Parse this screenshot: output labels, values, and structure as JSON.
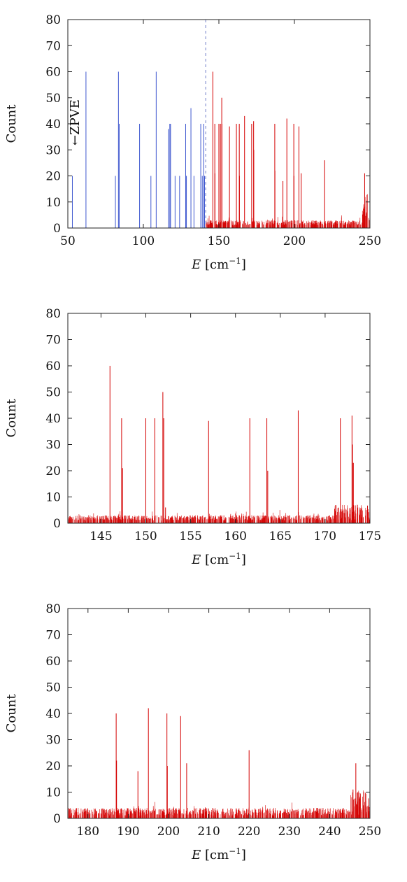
{
  "colors": {
    "spectrum": "#d40000",
    "blue_lines": "#3e57cf",
    "zpve_line": "#9aa4d8",
    "axis": "#222222"
  },
  "chart_data": [
    {
      "type": "bar",
      "panel": "full-range",
      "xlabel_main": "E",
      "xlabel_unit": "[cm",
      "xlabel_sup": "−1",
      "xlabel_close": "]",
      "ylabel": "Count",
      "xlim": [
        50,
        250
      ],
      "ylim": [
        0,
        80
      ],
      "xticks": [
        50,
        100,
        150,
        200,
        250
      ],
      "yticks": [
        0,
        10,
        20,
        30,
        40,
        50,
        60,
        70,
        80
      ],
      "grid": false,
      "annotation": "←ZPVE",
      "zpve_x": 141.3,
      "series": [
        {
          "color": "#3e57cf",
          "lines": [
            [
              53,
              20
            ],
            [
              62,
              60
            ],
            [
              81.5,
              20
            ],
            [
              83.5,
              60
            ],
            [
              84,
              40
            ],
            [
              97.5,
              40
            ],
            [
              100,
              1
            ],
            [
              105,
              20
            ],
            [
              108.5,
              60
            ],
            [
              116.5,
              38
            ],
            [
              117.5,
              40
            ],
            [
              118,
              40
            ],
            [
              121,
              20
            ],
            [
              124,
              20
            ],
            [
              128,
              40
            ],
            [
              128.5,
              20
            ],
            [
              131.5,
              46
            ],
            [
              133.5,
              20
            ],
            [
              138,
              40
            ],
            [
              139,
              20
            ],
            [
              140,
              40
            ],
            [
              140.5,
              20
            ]
          ]
        },
        {
          "color": "#d40000",
          "lines": [
            [
              146,
              60
            ],
            [
              147.3,
              40
            ],
            [
              147.4,
              21
            ],
            [
              150,
              40
            ],
            [
              151,
              40
            ],
            [
              151.9,
              50
            ],
            [
              152,
              40
            ],
            [
              157,
              39
            ],
            [
              161.6,
              40
            ],
            [
              163.5,
              40
            ],
            [
              163.6,
              20
            ],
            [
              167,
              43
            ],
            [
              171.7,
              40
            ],
            [
              173,
              41
            ],
            [
              173.1,
              30
            ],
            [
              187,
              40
            ],
            [
              187.1,
              22
            ],
            [
              192.4,
              18
            ],
            [
              195,
              42
            ],
            [
              199.6,
              40
            ],
            [
              199.7,
              20
            ],
            [
              203,
              39
            ],
            [
              204.5,
              21
            ],
            [
              220,
              26
            ],
            [
              246.5,
              21
            ]
          ]
        }
      ],
      "background_density": {
        "from": 141.3,
        "to": 250,
        "typical_max": 3,
        "peak_region": [
          245,
          250
        ],
        "peak_max": 12
      }
    },
    {
      "type": "bar",
      "panel": "zoom-141-175",
      "xlabel_main": "E",
      "xlabel_unit": "[cm",
      "xlabel_sup": "−1",
      "xlabel_close": "]",
      "ylabel": "Count",
      "xlim": [
        141.3,
        175
      ],
      "ylim": [
        0,
        80
      ],
      "xticks": [
        145,
        150,
        155,
        160,
        165,
        170,
        175
      ],
      "yticks": [
        0,
        10,
        20,
        30,
        40,
        50,
        60,
        70,
        80
      ],
      "grid": false,
      "series": [
        {
          "color": "#d40000",
          "lines": [
            [
              146,
              60
            ],
            [
              147.3,
              40
            ],
            [
              147.4,
              21
            ],
            [
              150,
              40
            ],
            [
              151,
              40
            ],
            [
              151.9,
              50
            ],
            [
              152,
              40
            ],
            [
              152.2,
              6
            ],
            [
              157,
              39
            ],
            [
              161.6,
              40
            ],
            [
              163.5,
              40
            ],
            [
              163.6,
              20
            ],
            [
              167,
              43
            ],
            [
              171.7,
              40
            ],
            [
              173,
              41
            ],
            [
              173.05,
              30
            ],
            [
              173.15,
              23
            ],
            [
              173.6,
              7
            ],
            [
              174,
              5
            ]
          ]
        }
      ],
      "background_density": {
        "from": 141.3,
        "to": 175,
        "typical_max": 3,
        "peak_region": [
          171,
          175
        ],
        "peak_max": 6
      }
    },
    {
      "type": "bar",
      "panel": "zoom-175-250",
      "xlabel_main": "E",
      "xlabel_unit": "[cm",
      "xlabel_sup": "−1",
      "xlabel_close": "]",
      "ylabel": "Count",
      "xlim": [
        175,
        250
      ],
      "ylim": [
        0,
        80
      ],
      "xticks": [
        180,
        190,
        200,
        210,
        220,
        230,
        240,
        250
      ],
      "yticks": [
        0,
        10,
        20,
        30,
        40,
        50,
        60,
        70,
        80
      ],
      "grid": false,
      "series": [
        {
          "color": "#d40000",
          "lines": [
            [
              187,
              40
            ],
            [
              187.1,
              22
            ],
            [
              192.4,
              18
            ],
            [
              195,
              42
            ],
            [
              199.6,
              40
            ],
            [
              199.7,
              20
            ],
            [
              203,
              39
            ],
            [
              204.5,
              21
            ],
            [
              220,
              26
            ],
            [
              245.8,
              11
            ],
            [
              246.5,
              21
            ],
            [
              247,
              10
            ],
            [
              247.5,
              8
            ]
          ]
        }
      ],
      "background_density": {
        "from": 175,
        "to": 250,
        "typical_max": 4,
        "peak_region": [
          245,
          250
        ],
        "peak_max": 10
      }
    }
  ]
}
